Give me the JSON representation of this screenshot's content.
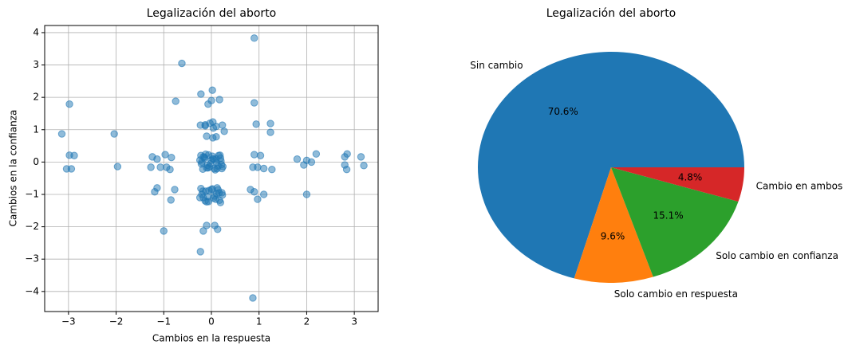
{
  "chart_data": [
    {
      "type": "scatter",
      "title": "Legalización del aborto",
      "x_label": "Cambios en la respuesta",
      "y_label": "Cambios en la confianza",
      "color": "#1f77b4",
      "grid": true,
      "xlim": [
        -3.5,
        3.5
      ],
      "ylim": [
        -4.62,
        4.22
      ],
      "xticks": [
        {
          "value": -3,
          "label": "−3"
        },
        {
          "value": -2,
          "label": "−2"
        },
        {
          "value": -1,
          "label": "−1"
        },
        0,
        1,
        2,
        3
      ],
      "yticks": [
        {
          "value": -4,
          "label": "−4"
        },
        {
          "value": -3,
          "label": "−3"
        },
        {
          "value": -2,
          "label": "−2"
        },
        {
          "value": -1,
          "label": "−1"
        },
        0,
        1,
        2,
        3,
        4
      ],
      "series": [
        {
          "x": [
            -3.14,
            -2.98,
            -2.98,
            -2.88,
            -3.04,
            -2.94,
            -2.04,
            -1.97,
            -1.24,
            -1.14,
            -1.27,
            -1.07,
            -0.97,
            -0.84,
            -0.94,
            -0.87,
            -1.14,
            -1.19,
            -0.77,
            -0.85,
            -1.0,
            -0.75,
            -0.62,
            -0.22,
            0.02,
            -0.07,
            0.0,
            0.17,
            -0.23,
            -0.13,
            -0.03,
            0.03,
            0.1,
            0.23,
            0.27,
            -0.1,
            0.03,
            0.1,
            -0.13,
            0.04,
            0.9,
            0.9,
            0.94,
            0.9,
            1.03,
            0.87,
            0.97,
            1.1,
            1.27,
            1.24,
            1.24,
            0.82,
            0.9,
            0.97,
            1.1,
            0.87,
            1.8,
            1.94,
            2.0,
            2.1,
            2.2,
            2.0,
            2.8,
            2.85,
            2.8,
            2.84,
            3.14,
            3.2,
            -0.1,
            0.07,
            -0.17,
            0.13,
            -0.23,
            -0.22,
            -0.18,
            -0.14,
            -0.1,
            -0.06,
            -0.02,
            0.02,
            0.06,
            0.1,
            0.14,
            0.18,
            0.22,
            -0.2,
            -0.15,
            -0.08,
            0.0,
            0.08,
            0.15,
            0.2,
            -0.21,
            -0.12,
            -0.04,
            0.05,
            0.12,
            0.19,
            -0.17,
            -0.07,
            0.03,
            0.11,
            0.21,
            -0.24,
            0.24,
            -0.22,
            -0.17,
            -0.12,
            -0.06,
            0.0,
            0.06,
            0.12,
            0.17,
            0.22,
            -0.2,
            -0.13,
            -0.05,
            0.04,
            0.11,
            0.19,
            -0.18,
            -0.08,
            0.02,
            0.09,
            0.16,
            0.23,
            -0.24,
            -0.1,
            0.14
          ],
          "y": [
            0.87,
            1.79,
            0.21,
            0.2,
            -0.21,
            -0.21,
            0.87,
            -0.14,
            0.16,
            0.09,
            -0.16,
            -0.16,
            0.23,
            0.14,
            -0.16,
            -0.23,
            -0.8,
            -0.92,
            -0.85,
            -1.17,
            -2.13,
            1.88,
            3.05,
            2.1,
            2.22,
            1.79,
            1.9,
            1.93,
            1.14,
            1.12,
            1.2,
            1.24,
            1.1,
            1.14,
            0.95,
            0.8,
            0.75,
            0.78,
            1.15,
            1.05,
            3.83,
            1.83,
            1.17,
            0.23,
            0.2,
            -0.16,
            -0.16,
            -0.2,
            -0.23,
            0.92,
            1.19,
            -0.85,
            -0.92,
            -1.15,
            -1.0,
            -4.2,
            0.09,
            -0.09,
            0.05,
            0.0,
            0.25,
            -1.0,
            0.16,
            0.25,
            -0.09,
            -0.23,
            0.16,
            -0.11,
            -1.96,
            -1.96,
            -2.13,
            -2.08,
            -2.77,
            0.2,
            -0.22,
            0.12,
            -0.18,
            0.22,
            -0.05,
            0.18,
            -0.2,
            0.1,
            -0.12,
            0.21,
            -0.2,
            0.0,
            0.15,
            -0.1,
            0.05,
            -0.24,
            0.2,
            0.03,
            -0.06,
            0.24,
            -0.15,
            0.08,
            -0.2,
            0.12,
            0.16,
            -0.18,
            0.1,
            -0.02,
            -0.08,
            0.06,
            -0.14,
            -0.82,
            -1.1,
            -0.9,
            -1.22,
            -0.85,
            -1.05,
            -0.8,
            -1.18,
            -0.95,
            -1.0,
            -1.2,
            -0.88,
            -1.12,
            -0.98,
            -1.25,
            -0.9,
            -1.07,
            -0.83,
            -1.15,
            -0.95,
            -1.02,
            -1.1,
            -1.23,
            -0.86
          ]
        }
      ]
    },
    {
      "type": "pie",
      "title": "Legalización del aborto",
      "categories": [
        "Sin cambio",
        "Solo cambio en respuesta",
        "Solo cambio en confianza",
        "Cambio en ambos"
      ],
      "values": [
        70.6,
        9.6,
        15.1,
        4.8
      ],
      "value_labels": [
        "70.6%",
        "9.6%",
        "15.1%",
        "4.8%"
      ],
      "colors": [
        "#1f77b4",
        "#ff7f0e",
        "#2ca02c",
        "#d62728"
      ]
    }
  ]
}
